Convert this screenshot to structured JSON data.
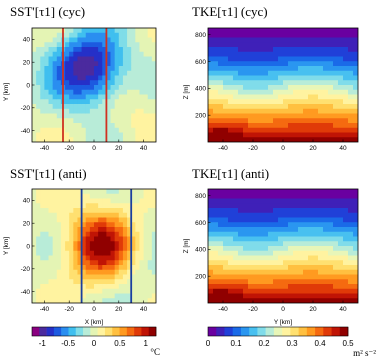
{
  "chart_data": [
    {
      "type": "heatmap",
      "title": "SST'[τ1] (cyc)",
      "xlabel": "",
      "ylabel": "Y [km]",
      "x_ticks": [
        "-40",
        "-20",
        "0",
        "20",
        "40"
      ],
      "y_ticks": [
        "40",
        "20",
        "0",
        "-20",
        "-40"
      ],
      "xlim": [
        -50,
        50
      ],
      "ylim": [
        -50,
        50
      ],
      "field": "cold core (cyclonic), minimum near x=-5, y=15",
      "vertical_lines": {
        "color": "#d03020",
        "x": [
          -25,
          10
        ]
      }
    },
    {
      "type": "heatmap",
      "title": "TKE[τ1] (cyc)",
      "xlabel": "",
      "ylabel": "Z [m]",
      "x_ticks": [
        "-40",
        "-20",
        "0",
        "20",
        "40"
      ],
      "y_ticks": [
        "800",
        "600",
        "400",
        "200"
      ],
      "xlim": [
        -50,
        50
      ],
      "ylim": [
        0,
        850
      ]
    },
    {
      "type": "heatmap",
      "title": "SST'[τ1] (anti)",
      "xlabel": "X [km]",
      "ylabel": "Y [km]",
      "x_ticks": [
        "-40",
        "-20",
        "0",
        "20",
        "40"
      ],
      "y_ticks": [
        "40",
        "20",
        "0",
        "-20",
        "-40"
      ],
      "xlim": [
        -50,
        50
      ],
      "ylim": [
        -50,
        50
      ],
      "field": "warm core (anticyclonic), maximum near x=5, y=0",
      "vertical_lines": {
        "color": "#1a3fa0",
        "x": [
          -10,
          30
        ]
      }
    },
    {
      "type": "heatmap",
      "title": "TKE[τ1] (anti)",
      "xlabel": "Y [km]",
      "ylabel": "Z [m]",
      "x_ticks": [
        "-40",
        "-20",
        "0",
        "20",
        "40"
      ],
      "y_ticks": [
        "800",
        "600",
        "400",
        "200"
      ],
      "xlim": [
        -50,
        50
      ],
      "ylim": [
        0,
        850
      ]
    }
  ],
  "colorbars": {
    "sst": {
      "ticks": [
        "-1",
        "-0.5",
        "0",
        "0.5",
        "1"
      ],
      "range": [
        -1.2,
        1.2
      ],
      "unit": "°C",
      "colors": [
        "#8a0080",
        "#4b2a9e",
        "#2530c8",
        "#1c5ae0",
        "#2a8ef0",
        "#3fbfef",
        "#7fdde8",
        "#b8ecd8",
        "#e4f4b4",
        "#fff3a0",
        "#ffe070",
        "#ffc040",
        "#ff9a20",
        "#f56a10",
        "#e03a08",
        "#c01405",
        "#900000"
      ]
    },
    "tke": {
      "ticks": [
        "0",
        "0.1",
        "0.2",
        "0.3",
        "0.4",
        "0.5"
      ],
      "range": [
        0,
        0.5
      ],
      "unit": "m² s⁻²",
      "colors": [
        "#6a00a0",
        "#3f20b8",
        "#2040d8",
        "#1a6ae8",
        "#2a96f0",
        "#48c0f0",
        "#80dcea",
        "#b8ecd8",
        "#e8f6b8",
        "#fff3a0",
        "#ffe070",
        "#ffc040",
        "#ff9a20",
        "#f56a10",
        "#e03a08",
        "#c01405",
        "#900000"
      ]
    }
  }
}
